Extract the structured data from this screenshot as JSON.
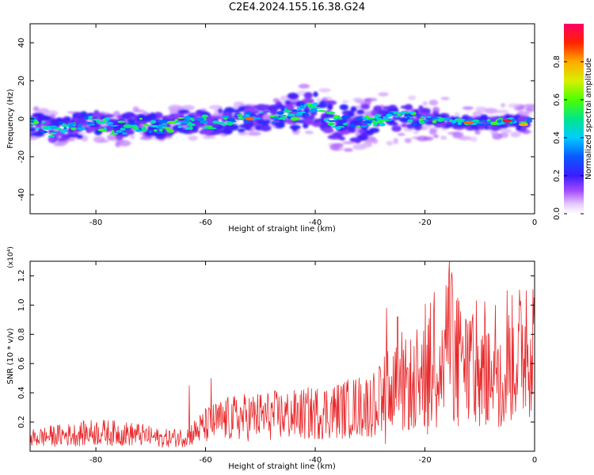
{
  "title": "C2E4.2024.155.16.38.G24",
  "chart_data": [
    {
      "type": "heatmap",
      "xlabel": "Height of straight line (km)",
      "ylabel": "Frequency (Hz)",
      "xlim": [
        -92,
        0
      ],
      "ylim": [
        -50,
        50
      ],
      "xticks": [
        -80,
        -60,
        -40,
        -20,
        0
      ],
      "yticks": [
        40,
        20,
        0,
        -20,
        -40
      ],
      "colorbar": {
        "label": "Normalized spectral amplitude",
        "range": [
          0,
          1
        ],
        "ticks": [
          "0.0",
          "0.2",
          "0.4",
          "0.6",
          "0.8"
        ]
      },
      "band_centerline": [
        {
          "x": -92,
          "y": -2
        },
        {
          "x": -88,
          "y": -6
        },
        {
          "x": -84,
          "y": -4
        },
        {
          "x": -80,
          "y": -2
        },
        {
          "x": -76,
          "y": -5
        },
        {
          "x": -72,
          "y": -3
        },
        {
          "x": -68,
          "y": -4
        },
        {
          "x": -64,
          "y": -2
        },
        {
          "x": -60,
          "y": -2
        },
        {
          "x": -56,
          "y": -1
        },
        {
          "x": -52,
          "y": 0
        },
        {
          "x": -48,
          "y": 1
        },
        {
          "x": -44,
          "y": 3
        },
        {
          "x": -40,
          "y": 5
        },
        {
          "x": -36,
          "y": -2
        },
        {
          "x": -32,
          "y": -3
        },
        {
          "x": -28,
          "y": 0
        },
        {
          "x": -24,
          "y": 1
        },
        {
          "x": -20,
          "y": 0
        },
        {
          "x": -16,
          "y": -1
        },
        {
          "x": -12,
          "y": -2
        },
        {
          "x": -8,
          "y": -2
        },
        {
          "x": -4,
          "y": -1
        },
        {
          "x": -2,
          "y": -3
        },
        {
          "x": 0,
          "y": 2
        }
      ],
      "peak_regions": [
        {
          "x": -52,
          "y": 0,
          "amplitude": 0.85
        },
        {
          "x": -12,
          "y": -2,
          "amplitude": 0.85
        },
        {
          "x": -5,
          "y": -1,
          "amplitude": 0.95
        },
        {
          "x": -2,
          "y": -3,
          "amplitude": 0.8
        }
      ]
    },
    {
      "type": "line",
      "xlabel": "Height of straight line (km)",
      "ylabel": "SNR (10 * v/v)",
      "scale_label": "(x10⁴)",
      "xlim": [
        -92,
        0
      ],
      "ylim": [
        0,
        1.3
      ],
      "xticks": [
        -80,
        -60,
        -40,
        -20,
        0
      ],
      "yticks": [
        "0.2",
        "0.4",
        "0.6",
        "0.8",
        "1.0",
        "1.2"
      ],
      "color": "#e8282a",
      "series": [
        {
          "x": [
            -92,
            -88,
            -84,
            -80,
            -76,
            -72,
            -68,
            -64,
            -62,
            -60,
            -58,
            -56,
            -52,
            -48,
            -44,
            -40,
            -36,
            -32,
            -30,
            -28,
            -26,
            -24,
            -22,
            -20,
            -18,
            -16,
            -15,
            -14,
            -12,
            -10,
            -8,
            -6,
            -4,
            -2,
            -1,
            0
          ],
          "y": [
            0.1,
            0.12,
            0.13,
            0.15,
            0.14,
            0.13,
            0.1,
            0.11,
            0.15,
            0.2,
            0.23,
            0.25,
            0.27,
            0.28,
            0.28,
            0.3,
            0.32,
            0.35,
            0.36,
            0.4,
            0.45,
            0.5,
            0.55,
            0.6,
            0.68,
            0.75,
            0.78,
            0.7,
            0.65,
            0.6,
            0.62,
            0.68,
            0.72,
            0.8,
            0.9,
            0.82
          ],
          "peaks": [
            {
              "x": -63,
              "y": 0.45
            },
            {
              "x": -59,
              "y": 0.5
            },
            {
              "x": -27,
              "y": 0.98
            },
            {
              "x": -25,
              "y": 0.92
            },
            {
              "x": -15.5,
              "y": 1.3
            },
            {
              "x": -14,
              "y": 1.05
            },
            {
              "x": -1.5,
              "y": 1.1
            }
          ]
        }
      ]
    }
  ]
}
